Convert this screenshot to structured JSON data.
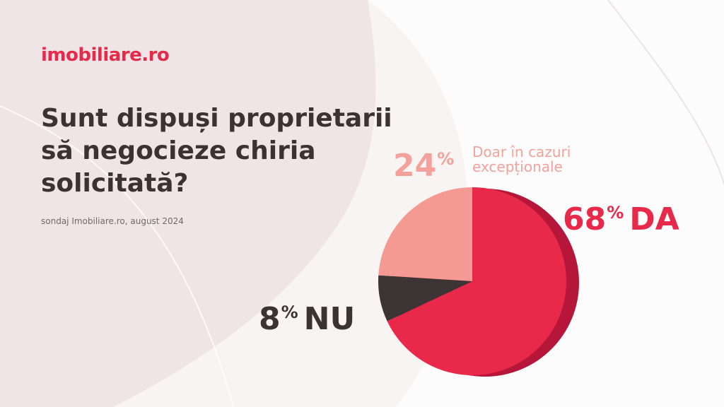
{
  "brand": {
    "logo_lead": "im",
    "logo_rest": "obiliare.ro"
  },
  "title_lines": [
    "Sunt dispuși proprietarii",
    "să negocieze chiria",
    "solicitată?"
  ],
  "source": "sondaj Imobiliare.ro, august 2024",
  "colors": {
    "brand": "#e8294a",
    "da": "#e8294a",
    "da_side": "#b5163a",
    "nu": "#3d3435",
    "exceptional": "#f59a93",
    "text_dark": "#3a3233"
  },
  "labels": {
    "da": {
      "value": "68",
      "unit": "%",
      "text": "DA"
    },
    "nu": {
      "value": "8",
      "unit": "%",
      "text": "NU"
    },
    "exceptional": {
      "value": "24",
      "unit": "%",
      "text_lines": [
        "Doar în cazuri",
        "excepționale"
      ]
    }
  },
  "chart_data": {
    "type": "pie",
    "title": "Sunt dispuși proprietarii să negocieze chiria solicitată?",
    "slices": [
      {
        "label": "DA",
        "value": 68,
        "color": "#e8294a"
      },
      {
        "label": "NU",
        "value": 8,
        "color": "#3d3435"
      },
      {
        "label": "Doar în cazuri excepționale",
        "value": 24,
        "color": "#f59a93"
      }
    ]
  }
}
